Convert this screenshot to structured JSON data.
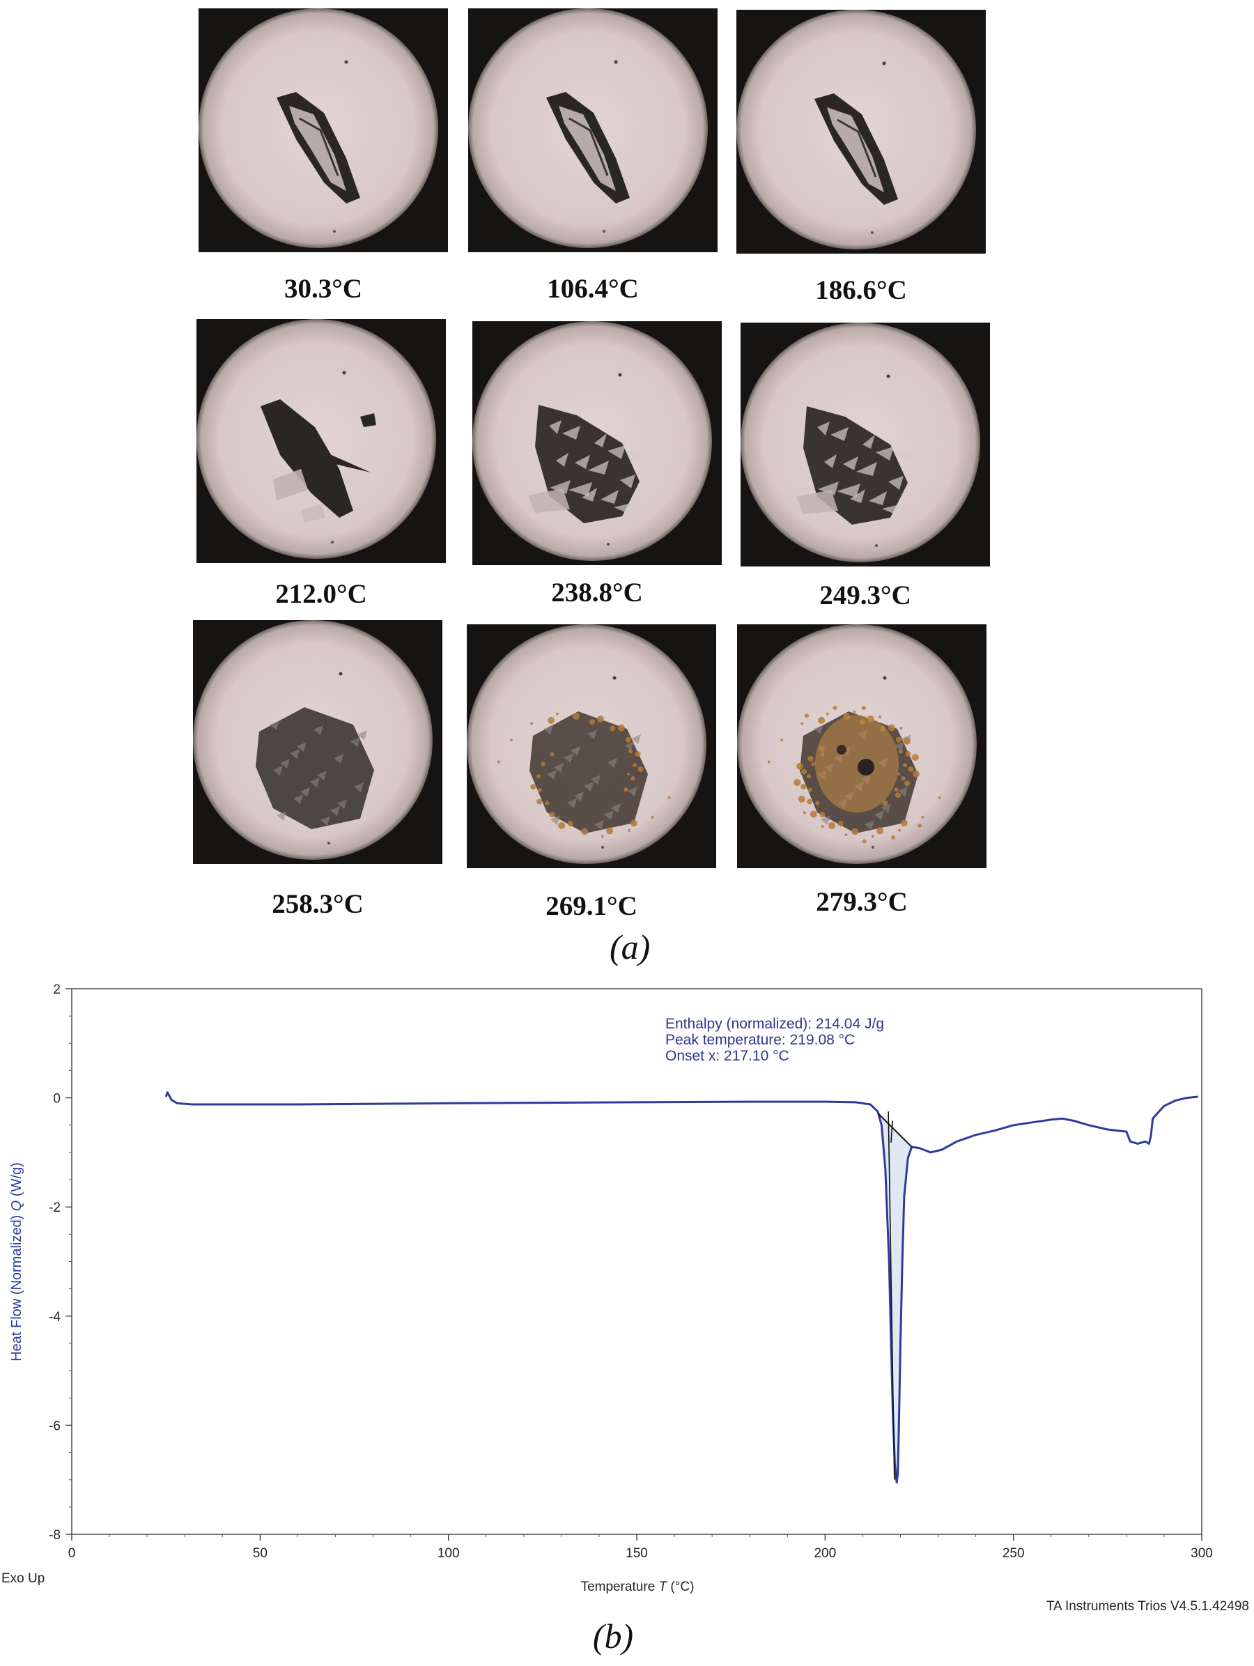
{
  "panel_a": {
    "letter": "(a)",
    "images": [
      {
        "label": "30.3°C",
        "stage": "intact"
      },
      {
        "label": "106.4°C",
        "stage": "intact"
      },
      {
        "label": "186.6°C",
        "stage": "intact"
      },
      {
        "label": "212.0°C",
        "stage": "cracking"
      },
      {
        "label": "238.8°C",
        "stage": "fragmented"
      },
      {
        "label": "249.3°C",
        "stage": "fragmented"
      },
      {
        "label": "258.3°C",
        "stage": "darkened"
      },
      {
        "label": "269.1°C",
        "stage": "browning"
      },
      {
        "label": "279.3°C",
        "stage": "decomposed"
      }
    ],
    "colors": {
      "field": "#d8c8c8",
      "vignette": "#161413",
      "crystal": "#2a2624",
      "residue": "#b57a3a"
    }
  },
  "panel_b": {
    "letter": "(b)",
    "exo_label": "Exo Up",
    "software_label": "TA Instruments Trios V4.5.1.42498",
    "chart_data": {
      "type": "line",
      "xlabel_text": "Temperature",
      "xlabel_symbol": "T",
      "xlabel_unit": "(°C)",
      "ylabel_text": "Heat Flow (Normalized)",
      "ylabel_symbol": "Q",
      "ylabel_unit": "(W/g)",
      "xlim": [
        0,
        300
      ],
      "ylim": [
        -8,
        2
      ],
      "xticks": [
        0,
        50,
        100,
        150,
        200,
        250,
        300
      ],
      "yticks": [
        2,
        0,
        -2,
        -4,
        -6,
        -8
      ],
      "grid": false,
      "series": [
        {
          "color": "#2e3a9c",
          "x": [
            25,
            25.4,
            25.8,
            26.5,
            28,
            32,
            40,
            60,
            100,
            150,
            180,
            200,
            208,
            212,
            214,
            215,
            216,
            217,
            217.5,
            218,
            218.5,
            219,
            219.3,
            219.6,
            220,
            220.5,
            221,
            222,
            223,
            225,
            228,
            231,
            235,
            240,
            245,
            250,
            255,
            260,
            263,
            266,
            270,
            275,
            280,
            281,
            283,
            284,
            285,
            286,
            286.5,
            287,
            288,
            290,
            293,
            296,
            299
          ],
          "y": [
            0.02,
            0.1,
            0.05,
            -0.04,
            -0.1,
            -0.12,
            -0.12,
            -0.12,
            -0.1,
            -0.08,
            -0.07,
            -0.07,
            -0.08,
            -0.12,
            -0.25,
            -0.5,
            -1.3,
            -3.0,
            -4.5,
            -5.8,
            -6.7,
            -7.05,
            -6.9,
            -6.0,
            -4.5,
            -3.0,
            -1.8,
            -1.1,
            -0.9,
            -0.92,
            -1.0,
            -0.95,
            -0.8,
            -0.68,
            -0.6,
            -0.5,
            -0.45,
            -0.4,
            -0.38,
            -0.42,
            -0.5,
            -0.58,
            -0.62,
            -0.8,
            -0.84,
            -0.82,
            -0.8,
            -0.84,
            -0.7,
            -0.38,
            -0.3,
            -0.15,
            -0.05,
            0.0,
            0.02
          ]
        }
      ],
      "integration": {
        "baseline_start": [
          214,
          -0.28
        ],
        "baseline_end": [
          223,
          -0.9
        ],
        "onset_x": 217.1,
        "fill_color": "#dfe8f3"
      },
      "annotations": [
        "Enthalpy (normalized): 214.04 J/g",
        "Peak temperature: 219.08 °C",
        "Onset x: 217.10 °C"
      ]
    }
  }
}
